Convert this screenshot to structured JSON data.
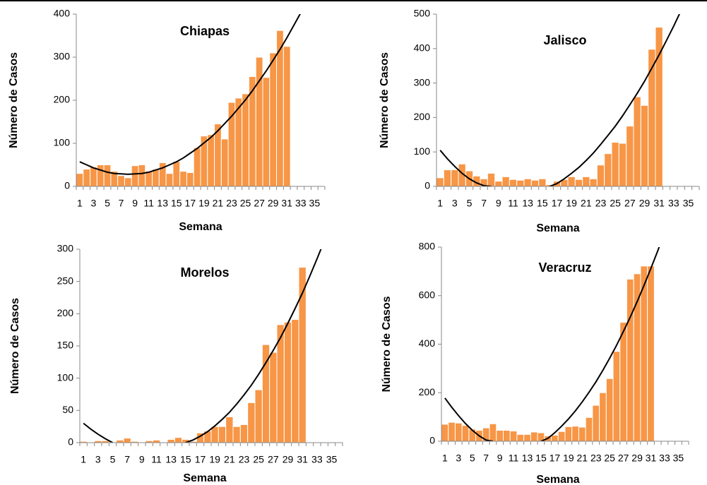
{
  "chart_data": [
    {
      "type": "bar",
      "title": "Chiapas",
      "x_label": "Semana",
      "y_label": "Número de Casos",
      "color": "#f79646",
      "trend_color": "#000000",
      "categories": [
        1,
        null,
        3,
        null,
        5,
        null,
        7,
        null,
        9,
        null,
        11,
        null,
        13,
        null,
        15,
        null,
        17,
        null,
        19,
        null,
        21,
        null,
        23,
        null,
        25,
        null,
        27,
        null,
        29,
        null,
        31,
        null,
        33,
        null,
        35,
        null
      ],
      "values": [
        30,
        40,
        45,
        50,
        50,
        35,
        25,
        20,
        48,
        50,
        35,
        40,
        55,
        30,
        58,
        35,
        32,
        90,
        117,
        120,
        145,
        110,
        195,
        205,
        215,
        255,
        300,
        253,
        310,
        362,
        325,
        null,
        null,
        null,
        null,
        null
      ],
      "trend": [
        57,
        50,
        43,
        38,
        33,
        30,
        29,
        28,
        29,
        30,
        33,
        38,
        43,
        50,
        57,
        66,
        77,
        88,
        101,
        114,
        129,
        146,
        163,
        182,
        201,
        222,
        245,
        268,
        293,
        318,
        345,
        374,
        403,
        null,
        null,
        null
      ],
      "ylim": [
        0,
        400
      ],
      "yticks": [
        0,
        100,
        200,
        300,
        400
      ]
    },
    {
      "type": "bar",
      "title": "Jalisco",
      "x_label": "Semana",
      "y_label": "Número de Casos",
      "color": "#f79646",
      "trend_color": "#000000",
      "categories": [
        1,
        null,
        3,
        null,
        5,
        null,
        7,
        null,
        9,
        null,
        11,
        null,
        13,
        null,
        15,
        null,
        17,
        null,
        19,
        null,
        21,
        null,
        23,
        null,
        25,
        null,
        27,
        null,
        29,
        null,
        31,
        null,
        33,
        null,
        35,
        null
      ],
      "values": [
        25,
        48,
        48,
        65,
        45,
        30,
        22,
        38,
        15,
        28,
        20,
        18,
        22,
        18,
        22,
        5,
        15,
        20,
        28,
        20,
        28,
        22,
        62,
        95,
        128,
        125,
        175,
        260,
        235,
        398,
        462,
        null,
        null,
        null,
        null,
        null
      ],
      "trend": [
        105,
        80,
        58,
        38,
        22,
        10,
        2,
        0,
        null,
        null,
        null,
        null,
        null,
        null,
        null,
        0,
        8,
        22,
        38,
        55,
        75,
        97,
        122,
        148,
        175,
        205,
        237,
        270,
        305,
        343,
        382,
        423,
        465,
        510,
        null,
        null
      ],
      "ylim": [
        0,
        500
      ],
      "yticks": [
        0,
        100,
        200,
        300,
        400,
        500
      ]
    },
    {
      "type": "bar",
      "title": "Morelos",
      "x_label": "Semana",
      "y_label": "Número de Casos",
      "color": "#f79646",
      "trend_color": "#000000",
      "categories": [
        1,
        null,
        3,
        null,
        5,
        null,
        7,
        null,
        9,
        null,
        11,
        null,
        13,
        null,
        15,
        null,
        17,
        null,
        19,
        null,
        21,
        null,
        23,
        null,
        25,
        null,
        27,
        null,
        29,
        null,
        31,
        null,
        33,
        null,
        35,
        null
      ],
      "values": [
        2,
        1,
        3,
        3,
        1,
        4,
        7,
        2,
        1,
        3,
        4,
        1,
        5,
        8,
        5,
        2,
        15,
        18,
        25,
        25,
        40,
        25,
        28,
        62,
        82,
        152,
        140,
        183,
        187,
        191,
        272,
        null,
        null,
        null,
        null,
        null
      ],
      "trend": [
        30,
        21,
        13,
        6,
        0,
        null,
        null,
        null,
        null,
        null,
        null,
        null,
        null,
        null,
        0,
        4,
        10,
        17,
        26,
        36,
        47,
        60,
        74,
        89,
        106,
        124,
        143,
        163,
        185,
        208,
        232,
        258,
        285,
        313,
        null,
        null
      ],
      "ylim": [
        0,
        300
      ],
      "yticks": [
        0,
        50,
        100,
        150,
        200,
        250,
        300
      ]
    },
    {
      "type": "bar",
      "title": "Veracruz",
      "x_label": "Semana",
      "y_label": "Número de Casos",
      "color": "#f79646",
      "trend_color": "#000000",
      "categories": [
        1,
        null,
        3,
        null,
        5,
        null,
        7,
        null,
        9,
        null,
        11,
        null,
        13,
        null,
        15,
        null,
        17,
        null,
        19,
        null,
        21,
        null,
        23,
        null,
        25,
        null,
        27,
        null,
        29,
        null,
        31,
        null,
        33,
        null,
        35,
        null
      ],
      "values": [
        70,
        78,
        75,
        65,
        50,
        45,
        55,
        72,
        45,
        45,
        42,
        28,
        28,
        38,
        35,
        22,
        25,
        40,
        60,
        62,
        58,
        98,
        148,
        200,
        258,
        370,
        490,
        668,
        690,
        722,
        722,
        null,
        null,
        null,
        null,
        null
      ],
      "trend": [
        178,
        140,
        105,
        73,
        45,
        22,
        5,
        0,
        null,
        null,
        null,
        null,
        null,
        null,
        0,
        12,
        35,
        62,
        92,
        125,
        162,
        202,
        245,
        292,
        342,
        395,
        452,
        512,
        575,
        642,
        712,
        785,
        862,
        null,
        null,
        null
      ],
      "ylim": [
        0,
        800
      ],
      "yticks": [
        0,
        200,
        400,
        600,
        800
      ]
    }
  ]
}
